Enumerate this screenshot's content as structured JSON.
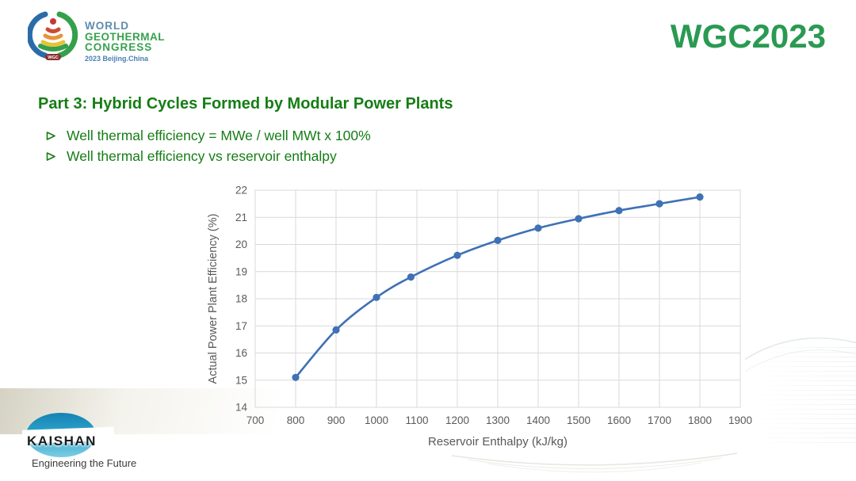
{
  "header": {
    "logo": {
      "line1": "WORLD",
      "line2": "GEOTHERMAL",
      "line3": "CONGRESS",
      "subtitle": "2023 Beijing.China",
      "badge": "WGC"
    },
    "brand": "WGC2023"
  },
  "slide": {
    "title": "Part 3: Hybrid Cycles Formed by Modular Power Plants",
    "bullet_marker": "➢",
    "bullets": [
      "Well thermal efficiency = MWe / well MWt x 100%",
      "Well thermal efficiency vs reservoir enthalpy"
    ]
  },
  "chart_data": {
    "type": "line",
    "x": [
      800,
      900,
      1000,
      1085,
      1200,
      1300,
      1400,
      1500,
      1600,
      1700,
      1800
    ],
    "y": [
      15.1,
      16.85,
      18.05,
      18.8,
      19.6,
      20.15,
      20.6,
      20.95,
      21.25,
      21.5,
      21.75
    ],
    "xlabel": "Reservoir  Enthalpy (kJ/kg)",
    "ylabel": "Actual Power Plant Efficiency (%)",
    "xlim": [
      700,
      1900
    ],
    "ylim": [
      14,
      22
    ],
    "x_ticks": [
      700,
      800,
      900,
      1000,
      1100,
      1200,
      1300,
      1400,
      1500,
      1600,
      1700,
      1800,
      1900
    ],
    "y_ticks": [
      14,
      15,
      16,
      17,
      18,
      19,
      20,
      21,
      22
    ],
    "grid": true,
    "legend": "none",
    "line_color": "#3f71b5",
    "marker": "circle"
  },
  "footer": {
    "logo_text": "KAISHAN",
    "tagline": "Engineering the Future"
  },
  "colors": {
    "brand_green": "#2a9a52",
    "title_green": "#157d15",
    "logo_blue": "#4a7fb5",
    "logo_green": "#36a14e",
    "line_blue": "#3f71b5",
    "axis_text_gray": "#595959",
    "grid_gray": "#d9d9d9",
    "kaishan_blue": "#1f95c0"
  }
}
